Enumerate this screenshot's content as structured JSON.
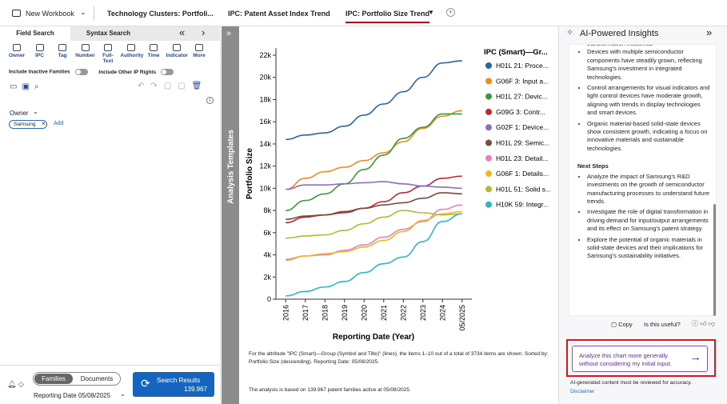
{
  "topbar": {
    "workbook": "New Workbook",
    "tabs": [
      "Technology Clusters: Portfoli...",
      "IPC: Patent Asset Index Trend",
      "IPC: Portfolio Size Trend"
    ],
    "active_tab": 2
  },
  "left_panel": {
    "tabs": [
      "Field Search",
      "Syntax Search"
    ],
    "tools": [
      "Owner",
      "IPC",
      "Tag",
      "Number",
      "Full-Text",
      "Authority",
      "Time",
      "Indicator",
      "More"
    ],
    "toggles": [
      "Include Inactive Families",
      "Include Other IP Rights"
    ],
    "filter": {
      "label": "Owner",
      "chip": "Samsung",
      "add": "Add"
    },
    "view_toggle": [
      "Families",
      "Documents"
    ],
    "search_button": {
      "label": "Search Results",
      "count": "139.967"
    },
    "reporting_date": "Reporting Date 05/08/2025"
  },
  "templates_bar": "Analysis Templates",
  "chart_data": {
    "type": "line",
    "ylabel": "Portfolio Size",
    "xlabel": "Reporting Date (Year)",
    "legend_title": "IPC (Smart)—Gr...",
    "legend": "right",
    "grid": false,
    "categories": [
      "2016",
      "2017",
      "2018",
      "2019",
      "2020",
      "2021",
      "2022",
      "2023",
      "2024",
      "05/2025"
    ],
    "ylim": [
      0,
      22650
    ],
    "yticks": [
      0,
      {
        "value": 2000,
        "label": "2k"
      },
      {
        "value": 4000,
        "label": "4k"
      },
      {
        "value": 6000,
        "label": "6k"
      },
      {
        "value": 8000,
        "label": "8k"
      },
      {
        "value": 10000,
        "label": "10k"
      },
      {
        "value": 12000,
        "label": "12k"
      },
      {
        "value": 14000,
        "label": "14k"
      },
      {
        "value": 16000,
        "label": "16k"
      },
      {
        "value": 18000,
        "label": "18k"
      },
      {
        "value": 20000,
        "label": "20k"
      },
      {
        "value": 22000,
        "label": "22k"
      }
    ],
    "series": [
      {
        "name": "H01L 21: Proce...",
        "color": "#2a64ad",
        "values": [
          14400,
          14800,
          15000,
          15600,
          16600,
          17600,
          18700,
          20000,
          21300,
          21500
        ]
      },
      {
        "name": "G06F 3: Input a...",
        "color": "#f28a26",
        "values": [
          9900,
          10900,
          11500,
          11900,
          12500,
          13200,
          14200,
          15400,
          16500,
          17000
        ]
      },
      {
        "name": "H01L 27: Devic...",
        "color": "#3d9a3a",
        "values": [
          8000,
          8900,
          9500,
          10400,
          11700,
          13000,
          14500,
          15500,
          16700,
          16700
        ]
      },
      {
        "name": "G09G 3: Contr...",
        "color": "#c4262e",
        "values": [
          6900,
          7400,
          7600,
          7800,
          8200,
          8800,
          9600,
          10200,
          10900,
          11100
        ]
      },
      {
        "name": "G02F 1: Device...",
        "color": "#8b6cc7",
        "values": [
          9900,
          10300,
          10300,
          10400,
          10500,
          10600,
          10400,
          10200,
          10100,
          10000
        ]
      },
      {
        "name": "H01L 29: Semic...",
        "color": "#7b4b3e",
        "values": [
          7200,
          7500,
          7600,
          7900,
          8200,
          8500,
          8700,
          9100,
          9600,
          9500
        ]
      },
      {
        "name": "H01L 23: Detail...",
        "color": "#e97fc2",
        "values": [
          3600,
          3900,
          4000,
          4400,
          4900,
          5600,
          6300,
          7000,
          8100,
          8500
        ]
      },
      {
        "name": "G06F 1: Details...",
        "color": "#efb820",
        "values": [
          3500,
          3900,
          4100,
          4300,
          4700,
          5300,
          6100,
          7100,
          7700,
          7900
        ]
      },
      {
        "name": "H01L 51: Solid s...",
        "color": "#b5bb2c",
        "values": [
          5500,
          5700,
          5800,
          6200,
          6800,
          7400,
          8000,
          7800,
          7600,
          7700
        ]
      },
      {
        "name": "H10K 59: Integr...",
        "color": "#2bb6cb",
        "values": [
          300,
          700,
          1100,
          1600,
          2400,
          3200,
          3800,
          5200,
          7000,
          7700
        ]
      }
    ]
  },
  "chart_notes": [
    "For the attribute \"IPC (Smart)—Group (Symbol and Title)\" (lines), the items 1–10 out of a total of 3734 items are shown. Sorted by: Portfolio Size (descending). Reporting Date: 05/08/2025.",
    "The analysis is based on 139.967 patent families active at 05/08/2025."
  ],
  "insights": {
    "title": "AI-Powered Insights",
    "lead": "transformation initiatives.",
    "items": [
      "Devices with multiple semiconductor components have steadily grown, reflecting Samsung's investment in integrated technologies.",
      "Control arrangements for visual indicators and light control devices have moderate growth, aligning with trends in display technologies and smart devices.",
      "Organic material-based solid-state devices show consistent growth, indicating a focus on innovative materials and sustainable technologies."
    ],
    "next_steps_title": "Next Steps",
    "next_steps": [
      "Analyze the impact of Samsung's R&D investments on the growth of semiconductor manufacturing processes to understand future trends.",
      "Investigate the role of digital transformation in driving demand for input/output arrangements and its effect on Samsung's patent strategy.",
      "Explore the potential of organic materials in solid-state devices and their implications for Samsung's sustainability initiatives."
    ],
    "copy": "Copy",
    "useful": "Is this useful?",
    "suggestion": "Analyze this chart more generally without considering my initial input.",
    "note": "AI-generated content must be reviewed for accuracy.",
    "disclaimer": "Disclaimer"
  }
}
